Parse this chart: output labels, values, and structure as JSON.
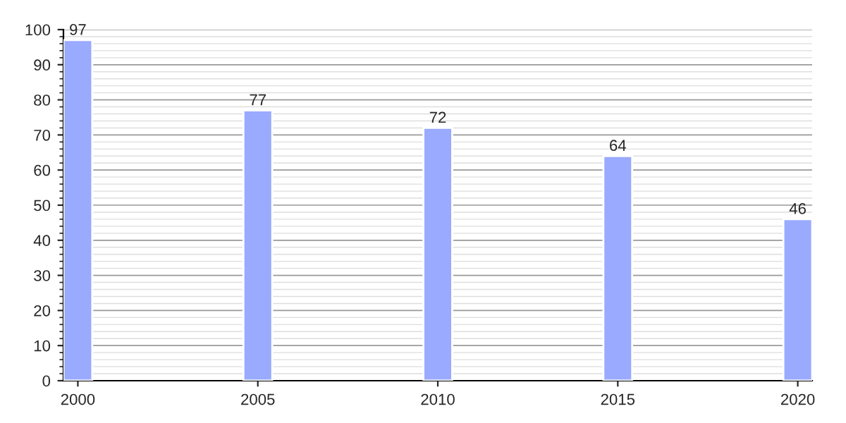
{
  "chart_data": {
    "type": "bar",
    "categories": [
      "2000",
      "2005",
      "2010",
      "2015",
      "2020"
    ],
    "values": [
      97,
      77,
      72,
      64,
      46
    ],
    "color": "#99aaff",
    "ylim": [
      0,
      100
    ],
    "yticks": [
      0,
      10,
      20,
      30,
      40,
      50,
      60,
      70,
      80,
      90,
      100
    ],
    "grid": "y",
    "data_labels": true
  }
}
